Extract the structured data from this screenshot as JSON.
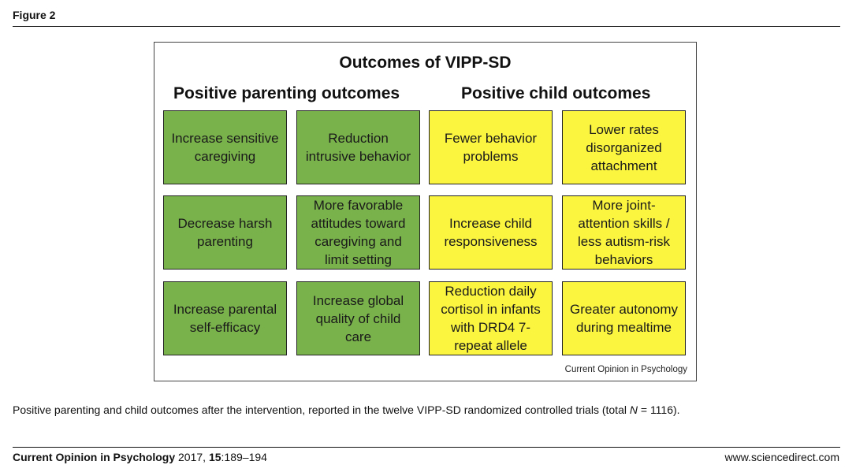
{
  "figure_label": "Figure 2",
  "diagram": {
    "title": "Outcomes of VIPP-SD",
    "left_heading": "Positive parenting outcomes",
    "right_heading": "Positive child outcomes",
    "parenting_outcomes": [
      "Increase sensitive caregiving",
      "Reduction intrusive behavior",
      "Decrease harsh parenting",
      "More favorable attitudes toward caregiving and limit setting",
      "Increase parental self-efficacy",
      "Increase global quality of child care"
    ],
    "child_outcomes": [
      "Fewer behavior problems",
      "Lower rates disorganized attachment",
      "Increase child responsiveness",
      "More joint-attention skills / less autism-risk behaviors",
      "Reduction daily cortisol in infants with DRD4 7-repeat allele",
      "Greater autonomy during mealtime"
    ],
    "credit": "Current Opinion in Psychology",
    "colors": {
      "parenting": "#79b24b",
      "child": "#fbf53f"
    }
  },
  "caption": {
    "before": "Positive parenting and child outcomes after the intervention, reported in the twelve VIPP-SD randomized controlled trials (total ",
    "n_symbol": "N",
    "after": " = 1116)."
  },
  "footer": {
    "journal_name": "Current Opinion in Psychology",
    "year": " 2017, ",
    "volume": "15",
    "pages": ":189–194",
    "website": "www.sciencedirect.com"
  }
}
